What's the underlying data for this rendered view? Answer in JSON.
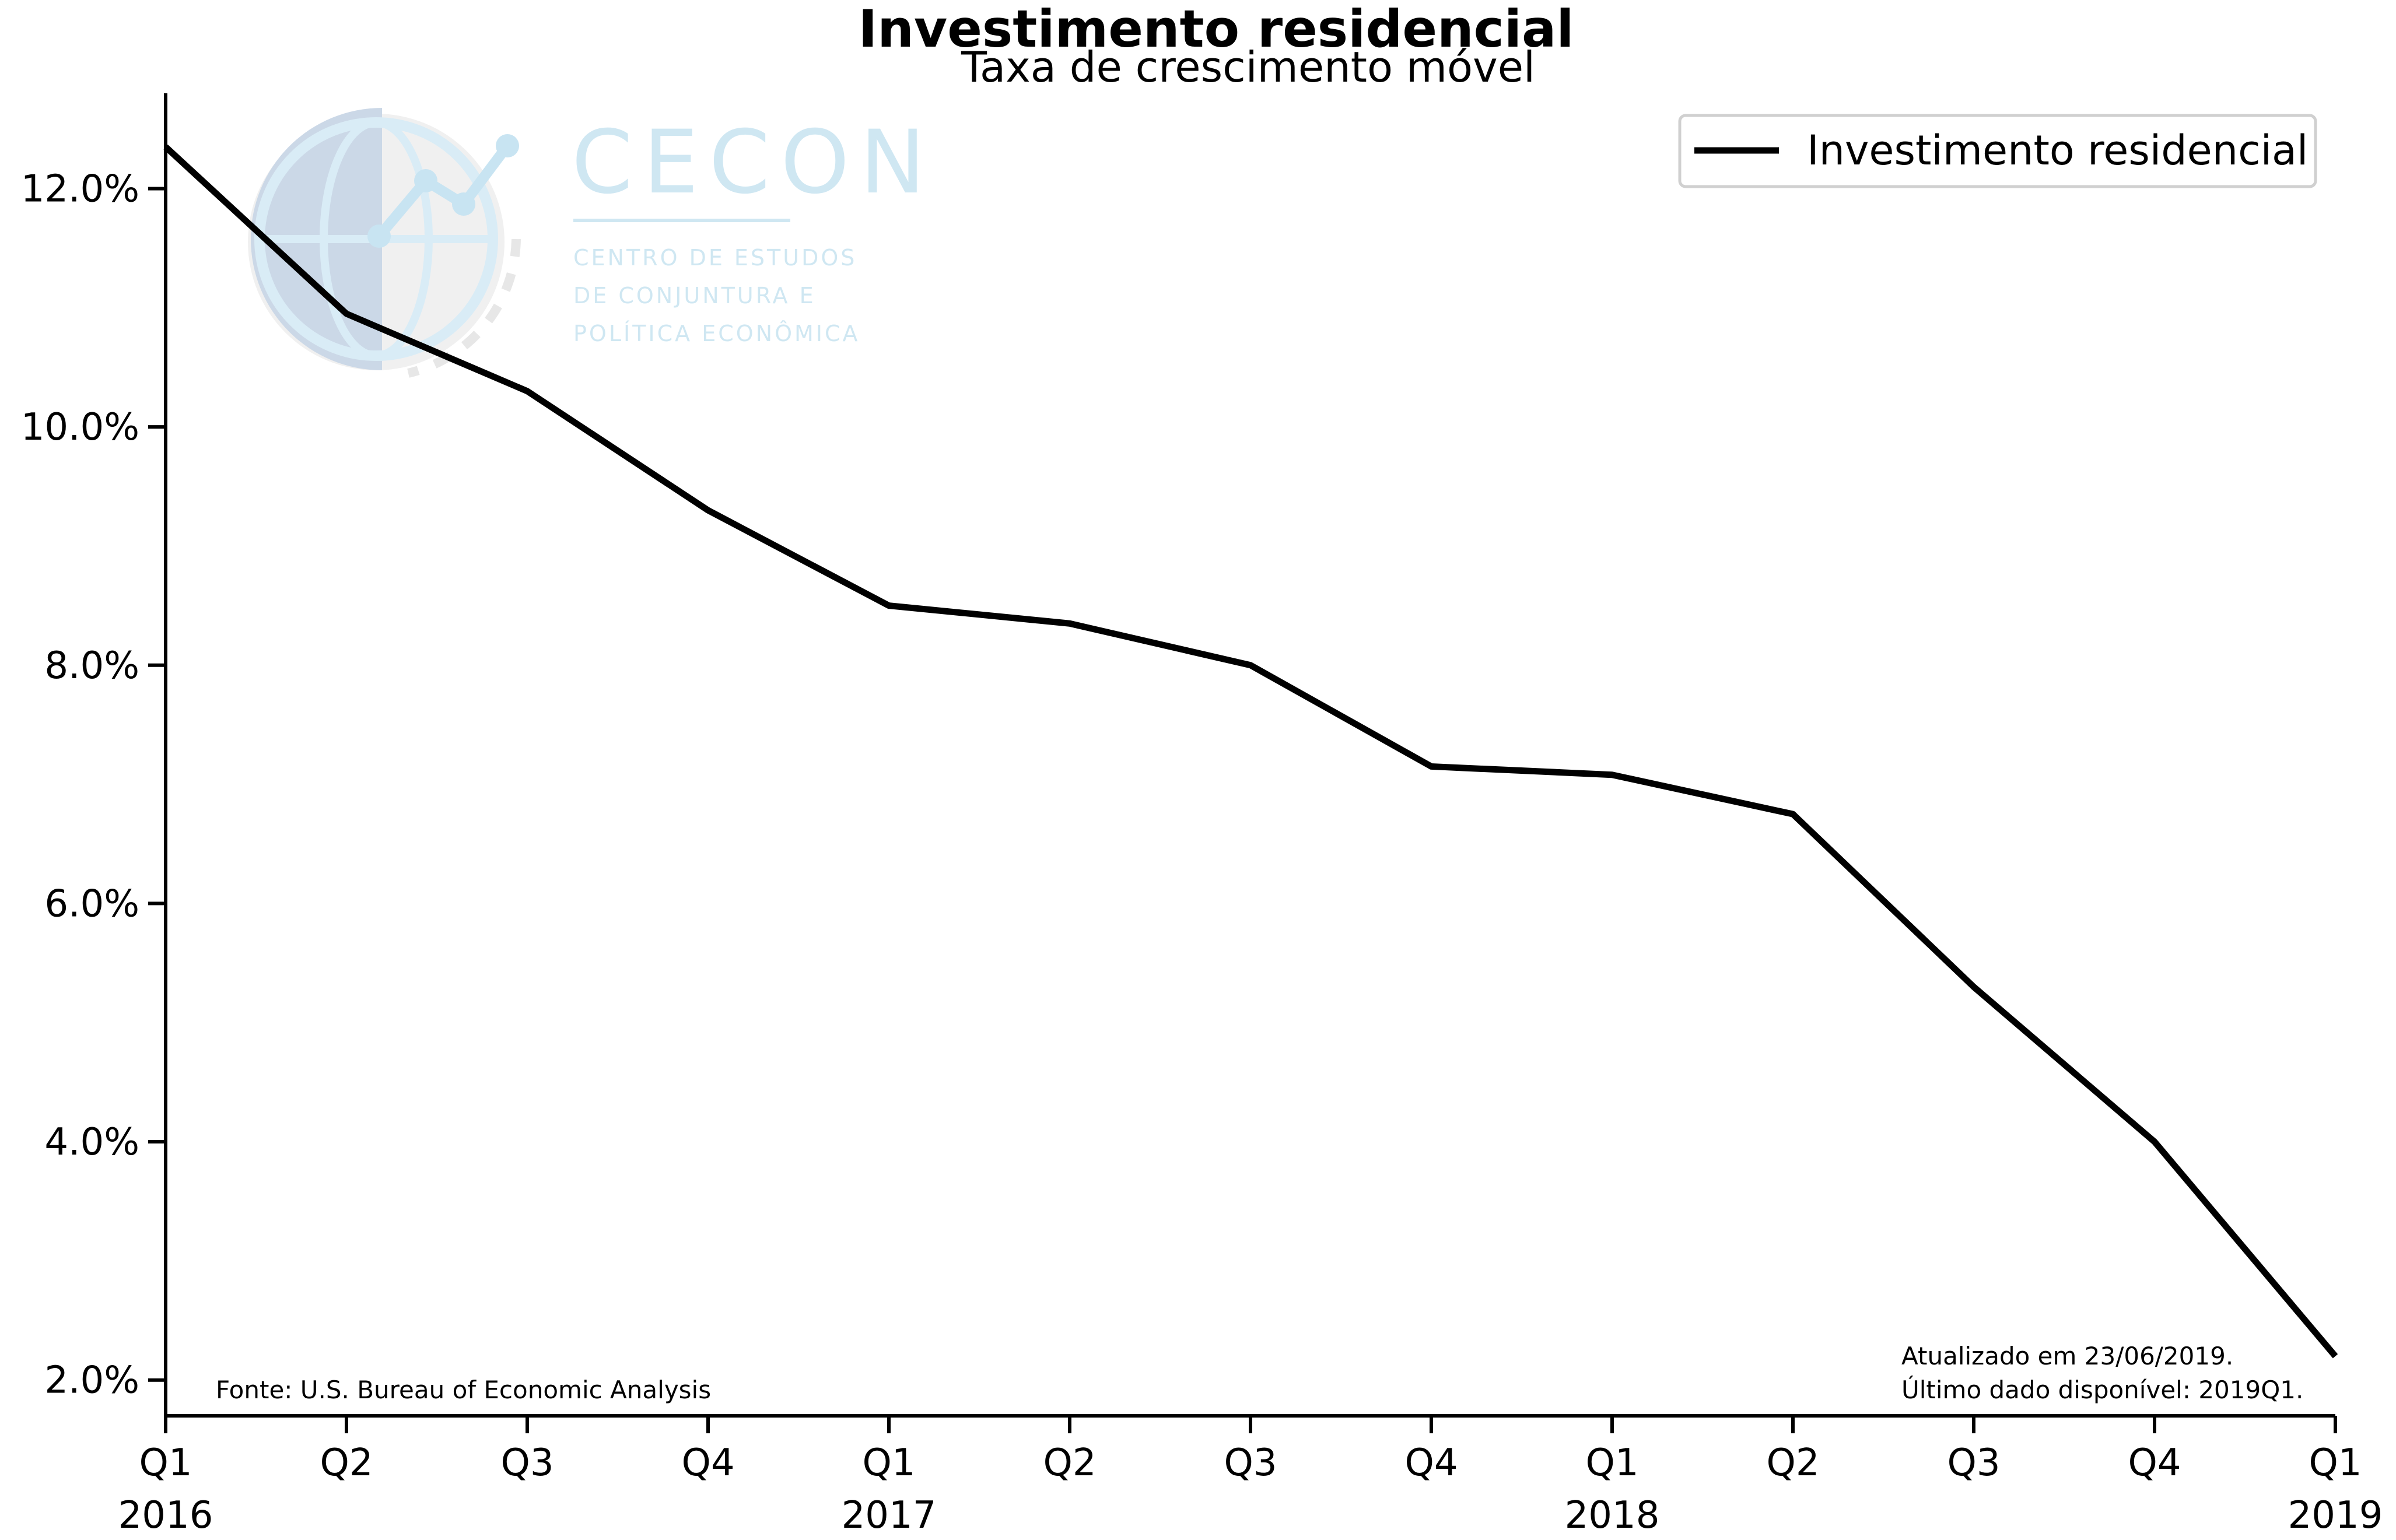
{
  "chart_data": {
    "type": "line",
    "title": "Investimento residencial",
    "subtitle": "Taxa de crescimento móvel",
    "ylim": [
      1.7,
      12.8
    ],
    "yticks": [
      2.0,
      4.0,
      6.0,
      8.0,
      10.0,
      12.0
    ],
    "ytick_labels": [
      "2.0%",
      "4.0%",
      "6.0%",
      "8.0%",
      "10.0%",
      "12.0%"
    ],
    "categories": [
      "2016Q1",
      "2016Q2",
      "2016Q3",
      "2016Q4",
      "2017Q1",
      "2017Q2",
      "2017Q3",
      "2017Q4",
      "2018Q1",
      "2018Q2",
      "2018Q3",
      "2018Q4",
      "2019Q1"
    ],
    "xtick_quarter_labels": [
      "Q1",
      "Q2",
      "Q3",
      "Q4",
      "Q1",
      "Q2",
      "Q3",
      "Q4",
      "Q1",
      "Q2",
      "Q3",
      "Q4",
      "Q1"
    ],
    "xtick_year_labels": [
      "2016",
      "",
      "",
      "",
      "2017",
      "",
      "",
      "",
      "2018",
      "",
      "",
      "",
      "2019"
    ],
    "series": [
      {
        "name": "Investimento residencial",
        "color": "#000000",
        "values": [
          12.35,
          10.95,
          10.3,
          9.3,
          8.5,
          8.35,
          8.0,
          7.15,
          7.08,
          6.75,
          5.3,
          4.0,
          2.2
        ]
      }
    ],
    "legend_position": "top-right",
    "grid": false,
    "annotations": {
      "source": "Fonte: U.S. Bureau of Economic Analysis",
      "updated": "Atualizado em 23/06/2019.",
      "last_data": "Último dado disponível: 2019Q1."
    }
  },
  "logo": {
    "word": "CECON",
    "line1": "CENTRO DE ESTUDOS",
    "line2": "DE CONJUNTURA E",
    "line3": "POLÍTICA ECONÔMICA",
    "color": "#cde6f2"
  }
}
